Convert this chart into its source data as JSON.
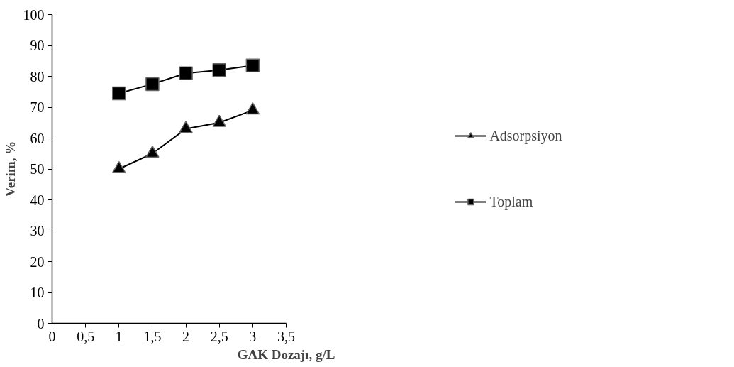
{
  "chart_data": {
    "type": "line",
    "xlabel": "GAK Dozajı, g/L",
    "ylabel": "Verim, %",
    "x": [
      1,
      1.5,
      2,
      2.5,
      3
    ],
    "series": [
      {
        "name": "Adsorpsiyon",
        "color": "#000000",
        "marker": "triangle",
        "values": [
          50,
          55,
          63,
          65,
          69
        ]
      },
      {
        "name": "Toplam",
        "color": "#000000",
        "marker": "square",
        "values": [
          74.5,
          77.5,
          81,
          82,
          83.5
        ]
      }
    ],
    "xlim": [
      0,
      3.5
    ],
    "xticks": [
      0,
      {
        "value": 0.5,
        "label": "0,5"
      },
      1,
      {
        "value": 1.5,
        "label": "1,5"
      },
      2,
      {
        "value": 2.5,
        "label": "2,5"
      },
      3,
      {
        "value": 3.5,
        "label": "3,5"
      }
    ],
    "ylim": [
      0,
      100
    ],
    "yticks": [
      0,
      10,
      20,
      30,
      40,
      50,
      60,
      70,
      80,
      90,
      100
    ],
    "grid": false,
    "legend": "right",
    "line_style": "solid"
  }
}
